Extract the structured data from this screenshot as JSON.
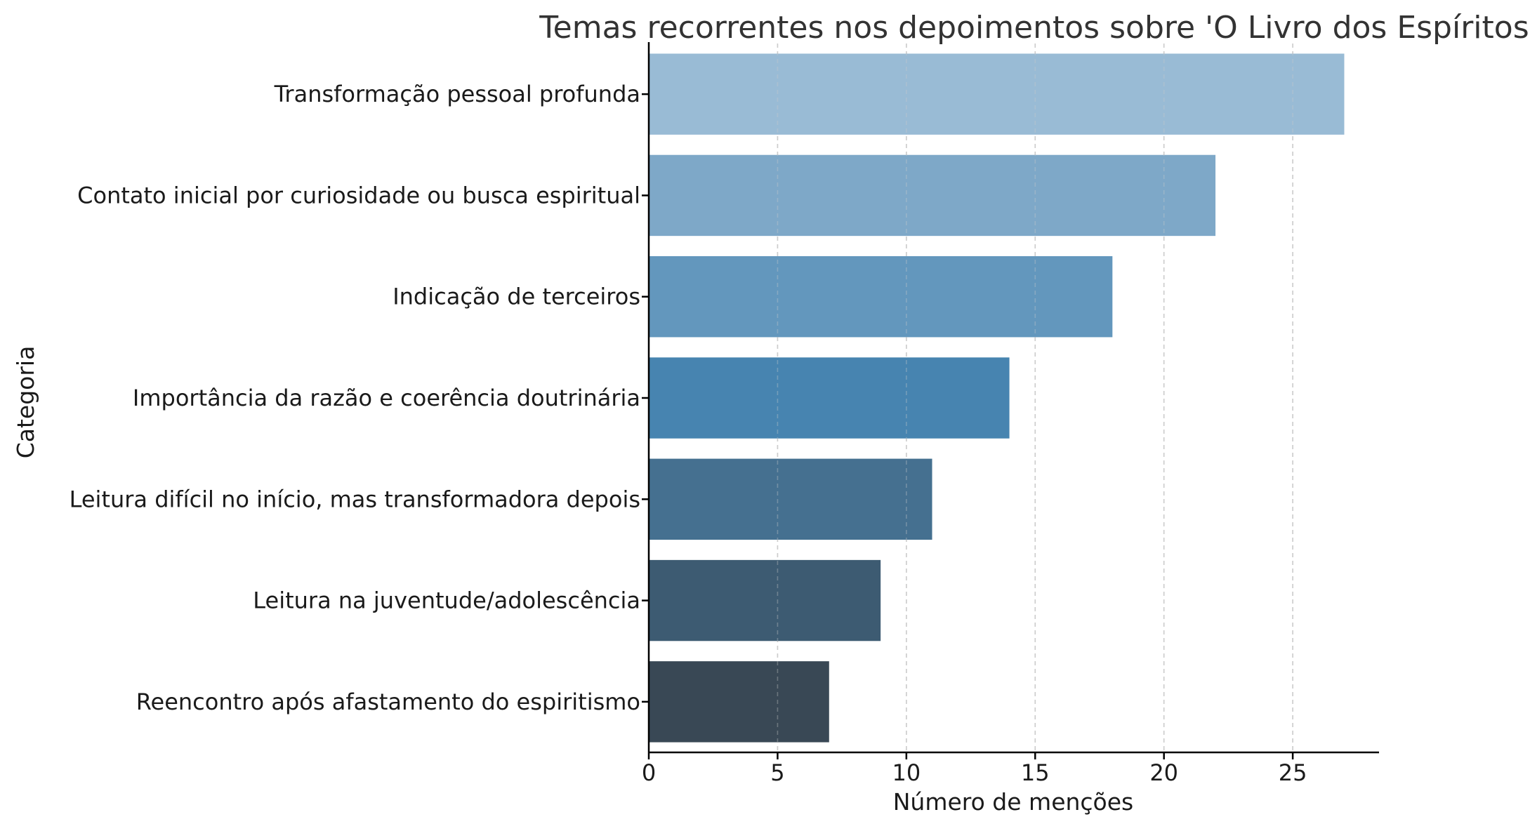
{
  "chart_data": {
    "type": "bar",
    "orientation": "horizontal",
    "title": "Temas recorrentes nos depoimentos sobre 'O Livro dos Espíritos'",
    "xlabel": "Número de menções",
    "ylabel": "Categoria",
    "xlim": [
      0,
      28.35
    ],
    "xticks": [
      0,
      5,
      10,
      15,
      20,
      25
    ],
    "xtick_labels": [
      "0",
      "5",
      "10",
      "15",
      "20",
      "25"
    ],
    "grid": "x-axis dashed",
    "legend": "none",
    "categories": [
      "Transformação pessoal profunda",
      "Contato inicial por curiosidade ou busca espiritual",
      "Indicação de terceiros",
      "Importância da razão e coerência doutrinária",
      "Leitura difícil no início, mas transformadora depois",
      "Leitura na juventude/adolescência",
      "Reencontro após afastamento do espiritismo"
    ],
    "values": [
      27,
      22,
      18,
      14,
      11,
      9,
      7
    ],
    "colors": [
      "#99bbd5",
      "#7ea8c8",
      "#6397bd",
      "#4784b0",
      "#457090",
      "#3d5b72",
      "#394855"
    ]
  }
}
